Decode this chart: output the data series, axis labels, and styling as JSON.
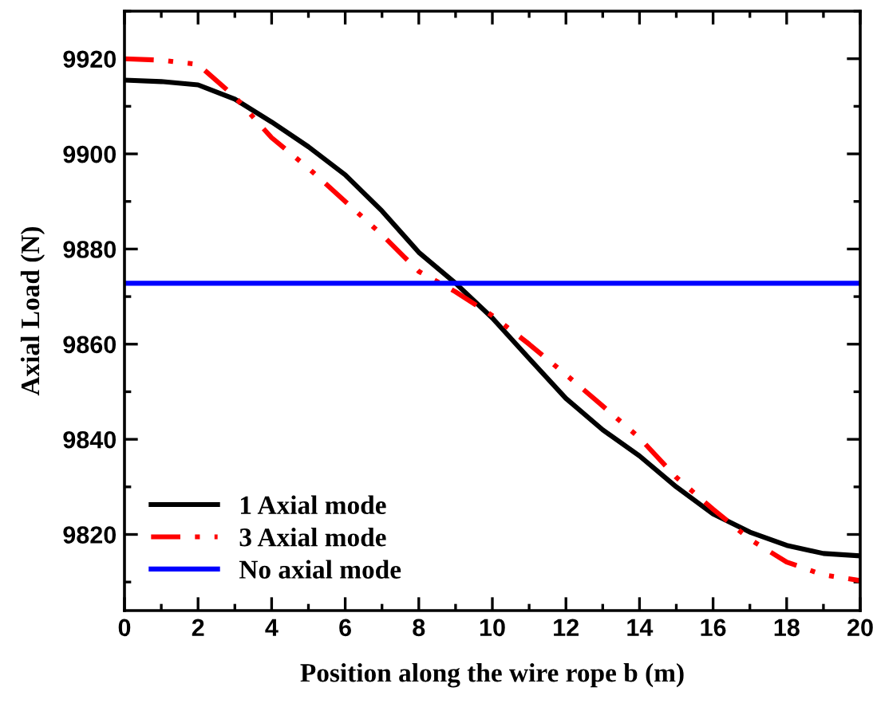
{
  "chart_data": {
    "type": "line",
    "xlabel": "Position along the wire rope b (m)",
    "ylabel": "Axial Load (N)",
    "xlim": [
      0,
      20
    ],
    "xticks": [
      0,
      2,
      4,
      6,
      8,
      10,
      12,
      14,
      16,
      18,
      20
    ],
    "ylim": [
      9804,
      9930
    ],
    "yticks": [
      9820,
      9840,
      9860,
      9880,
      9900,
      9920
    ],
    "grid": false,
    "legend": "bottom left",
    "marker": "none",
    "series": [
      {
        "name": "1 Axial mode",
        "color": "#000000",
        "line_style": "solid",
        "x": [
          0,
          1,
          2,
          3,
          4,
          5,
          6,
          7,
          8,
          9,
          10,
          11,
          12,
          13,
          14,
          15,
          16,
          17,
          18,
          19,
          20
        ],
        "values": [
          9915.5,
          9915.2,
          9914.5,
          9911.5,
          9906.7,
          9901.5,
          9895.6,
          9888,
          9879.3,
          9872.8,
          9865.5,
          9857,
          9848.6,
          9842,
          9836.5,
          9830,
          9824.3,
          9820.5,
          9817.7,
          9816,
          9815.5
        ]
      },
      {
        "name": "3 Axial mode",
        "color": "#ff0000",
        "line_style": "dashed",
        "x": [
          0,
          1,
          2,
          3,
          4,
          5,
          6,
          7,
          8,
          9,
          10,
          11,
          12,
          13,
          14,
          15,
          16,
          17,
          18,
          19,
          20
        ],
        "values": [
          9920,
          9919.7,
          9918.8,
          9912,
          9903.4,
          9897,
          9890,
          9883,
          9875.3,
          9871,
          9866,
          9860,
          9853.6,
          9847,
          9840.3,
          9832,
          9825.3,
          9819,
          9814.2,
          9811.5,
          9810.3
        ]
      },
      {
        "name": "No axial mode",
        "color": "#0000ff",
        "line_style": "solid",
        "x": [
          0,
          20
        ],
        "values": [
          9872.8,
          9872.8
        ]
      }
    ]
  }
}
